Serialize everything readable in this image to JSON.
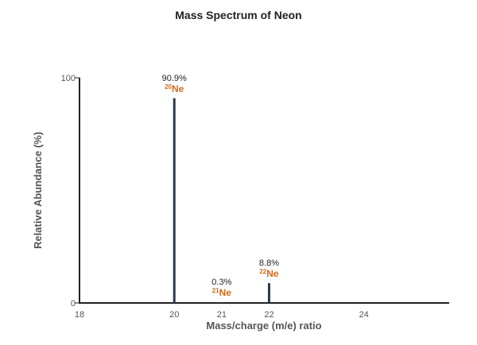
{
  "chart_data": {
    "type": "bar",
    "title": "Mass Spectrum of Neon",
    "xlabel": "Mass/charge (m/e) ratio",
    "ylabel": "Relative Abundance (%)",
    "xlim": [
      18,
      25.8
    ],
    "ylim": [
      0,
      100
    ],
    "x_ticks": [
      18,
      20,
      21,
      22,
      24
    ],
    "y_ticks": [
      0,
      100
    ],
    "grid": false,
    "bar_color": "#2b3a4a",
    "label_color": "#d4691e",
    "points": [
      {
        "x": 20,
        "y": 90.9,
        "value_label": "90.9%",
        "mass": "20",
        "symbol": "Ne"
      },
      {
        "x": 21,
        "y": 0.3,
        "value_label": "0.3%",
        "mass": "21",
        "symbol": "Ne"
      },
      {
        "x": 22,
        "y": 8.8,
        "value_label": "8.8%",
        "mass": "22",
        "symbol": "Ne"
      }
    ]
  }
}
